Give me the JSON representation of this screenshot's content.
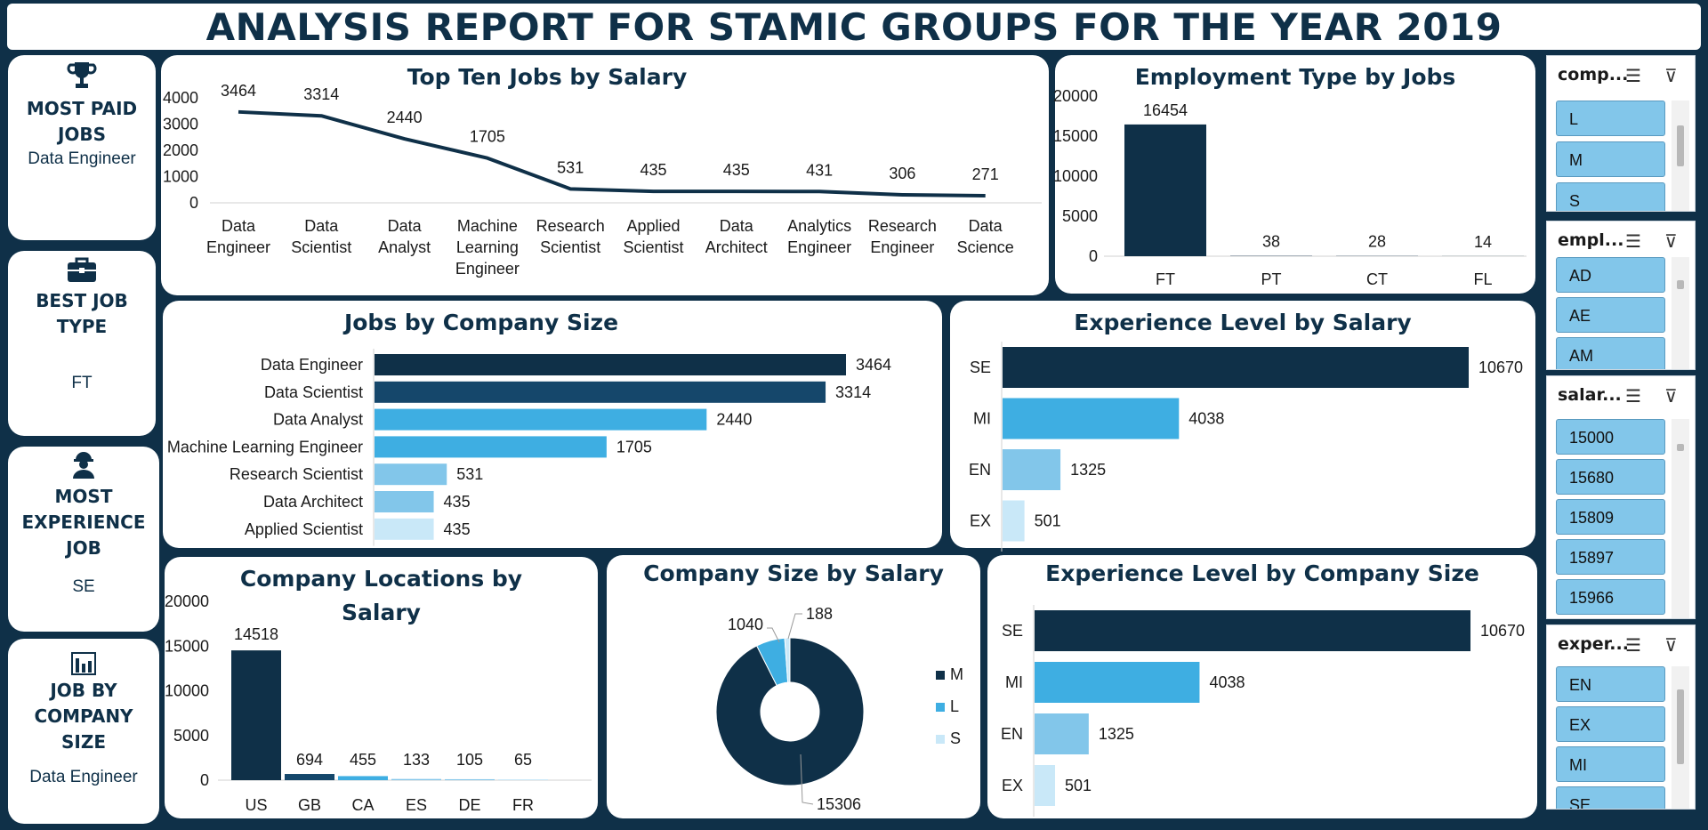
{
  "header": {
    "title": "ANALYSIS REPORT FOR STAMIC GROUPS FOR THE YEAR 2019"
  },
  "kpis": [
    {
      "title": "MOST PAID JOBS",
      "value": "Data Engineer",
      "icon": "trophy-icon"
    },
    {
      "title": "BEST JOB TYPE",
      "value": "FT",
      "icon": "briefcase-icon"
    },
    {
      "title": "MOST EXPERIENCE JOB",
      "value": "SE",
      "icon": "worker-icon"
    },
    {
      "title": "JOB BY COMPANY SIZE",
      "value": "Data Engineer",
      "icon": "chart-icon"
    }
  ],
  "colors": {
    "navy": "#0f3048",
    "blue": "#3eaee2",
    "light": "#82c6ea",
    "pale": "#c9e8f8"
  },
  "chart_data": [
    {
      "id": "top_jobs",
      "type": "line",
      "title": "Top Ten Jobs by Salary",
      "categories": [
        "Data Engineer",
        "Data Scientist",
        "Data Analyst",
        "Machine Learning Engineer",
        "Research Scientist",
        "Applied Scientist",
        "Data Architect",
        "Analytics Engineer",
        "Research Engineer",
        "Data Science"
      ],
      "values": [
        3464,
        3314,
        2440,
        1705,
        531,
        435,
        435,
        431,
        306,
        271
      ],
      "yticks": [
        0,
        1000,
        2000,
        3000,
        4000
      ],
      "ylim": [
        0,
        4000
      ]
    },
    {
      "id": "emp_type",
      "type": "bar",
      "title": "Employment Type by Jobs",
      "categories": [
        "FT",
        "PT",
        "CT",
        "FL"
      ],
      "values": [
        16454,
        38,
        28,
        14
      ],
      "yticks": [
        0,
        5000,
        10000,
        15000,
        20000
      ],
      "ylim": [
        0,
        20000
      ]
    },
    {
      "id": "jobs_company",
      "type": "bar",
      "title": "Jobs by Company Size",
      "categories": [
        "Data Engineer",
        "Data Scientist",
        "Data Analyst",
        "Machine Learning Engineer",
        "Research Scientist",
        "Data Architect",
        "Applied Scientist"
      ],
      "values": [
        3464,
        3314,
        2440,
        1705,
        531,
        435,
        435
      ],
      "colors": [
        "#0f3048",
        "#15476b",
        "#3eaee2",
        "#3eaee2",
        "#82c6ea",
        "#82c6ea",
        "#c9e8f8"
      ]
    },
    {
      "id": "exp_salary",
      "type": "bar",
      "title": "Experience Level by Salary",
      "categories": [
        "SE",
        "MI",
        "EN",
        "EX"
      ],
      "values": [
        10670,
        4038,
        1325,
        501
      ],
      "colors": [
        "#0f3048",
        "#3eaee2",
        "#82c6ea",
        "#c9e8f8"
      ]
    },
    {
      "id": "locations",
      "type": "bar",
      "title": "Company Locations by Salary",
      "categories": [
        "US",
        "GB",
        "CA",
        "ES",
        "DE",
        "FR"
      ],
      "values": [
        14518,
        694,
        455,
        133,
        105,
        65
      ],
      "yticks": [
        0,
        5000,
        10000,
        15000,
        20000
      ],
      "ylim": [
        0,
        20000
      ],
      "colors": [
        "#0f3048",
        "#15476b",
        "#3eaee2",
        "#82c6ea",
        "#82c6ea",
        "#c9e8f8"
      ]
    },
    {
      "id": "size_salary",
      "type": "pie",
      "title": "Company Size by Salary",
      "categories": [
        "M",
        "L",
        "S"
      ],
      "values": [
        15306,
        1040,
        188
      ],
      "colors": [
        "#0f3048",
        "#3eaee2",
        "#c9e8f8"
      ],
      "legend": "right"
    },
    {
      "id": "exp_company",
      "type": "bar",
      "title": "Experience Level by Company Size",
      "categories": [
        "SE",
        "MI",
        "EN",
        "EX"
      ],
      "values": [
        10670,
        4038,
        1325,
        501
      ],
      "colors": [
        "#0f3048",
        "#3eaee2",
        "#82c6ea",
        "#c9e8f8"
      ]
    }
  ],
  "slicers": [
    {
      "title": "comp...",
      "items": [
        "L",
        "M",
        "S"
      ]
    },
    {
      "title": "empl...",
      "items": [
        "AD",
        "AE",
        "AM"
      ]
    },
    {
      "title": "salar...",
      "items": [
        "15000",
        "15680",
        "15809",
        "15897",
        "15966"
      ]
    },
    {
      "title": "exper...",
      "items": [
        "EN",
        "EX",
        "MI",
        "SE"
      ]
    }
  ]
}
